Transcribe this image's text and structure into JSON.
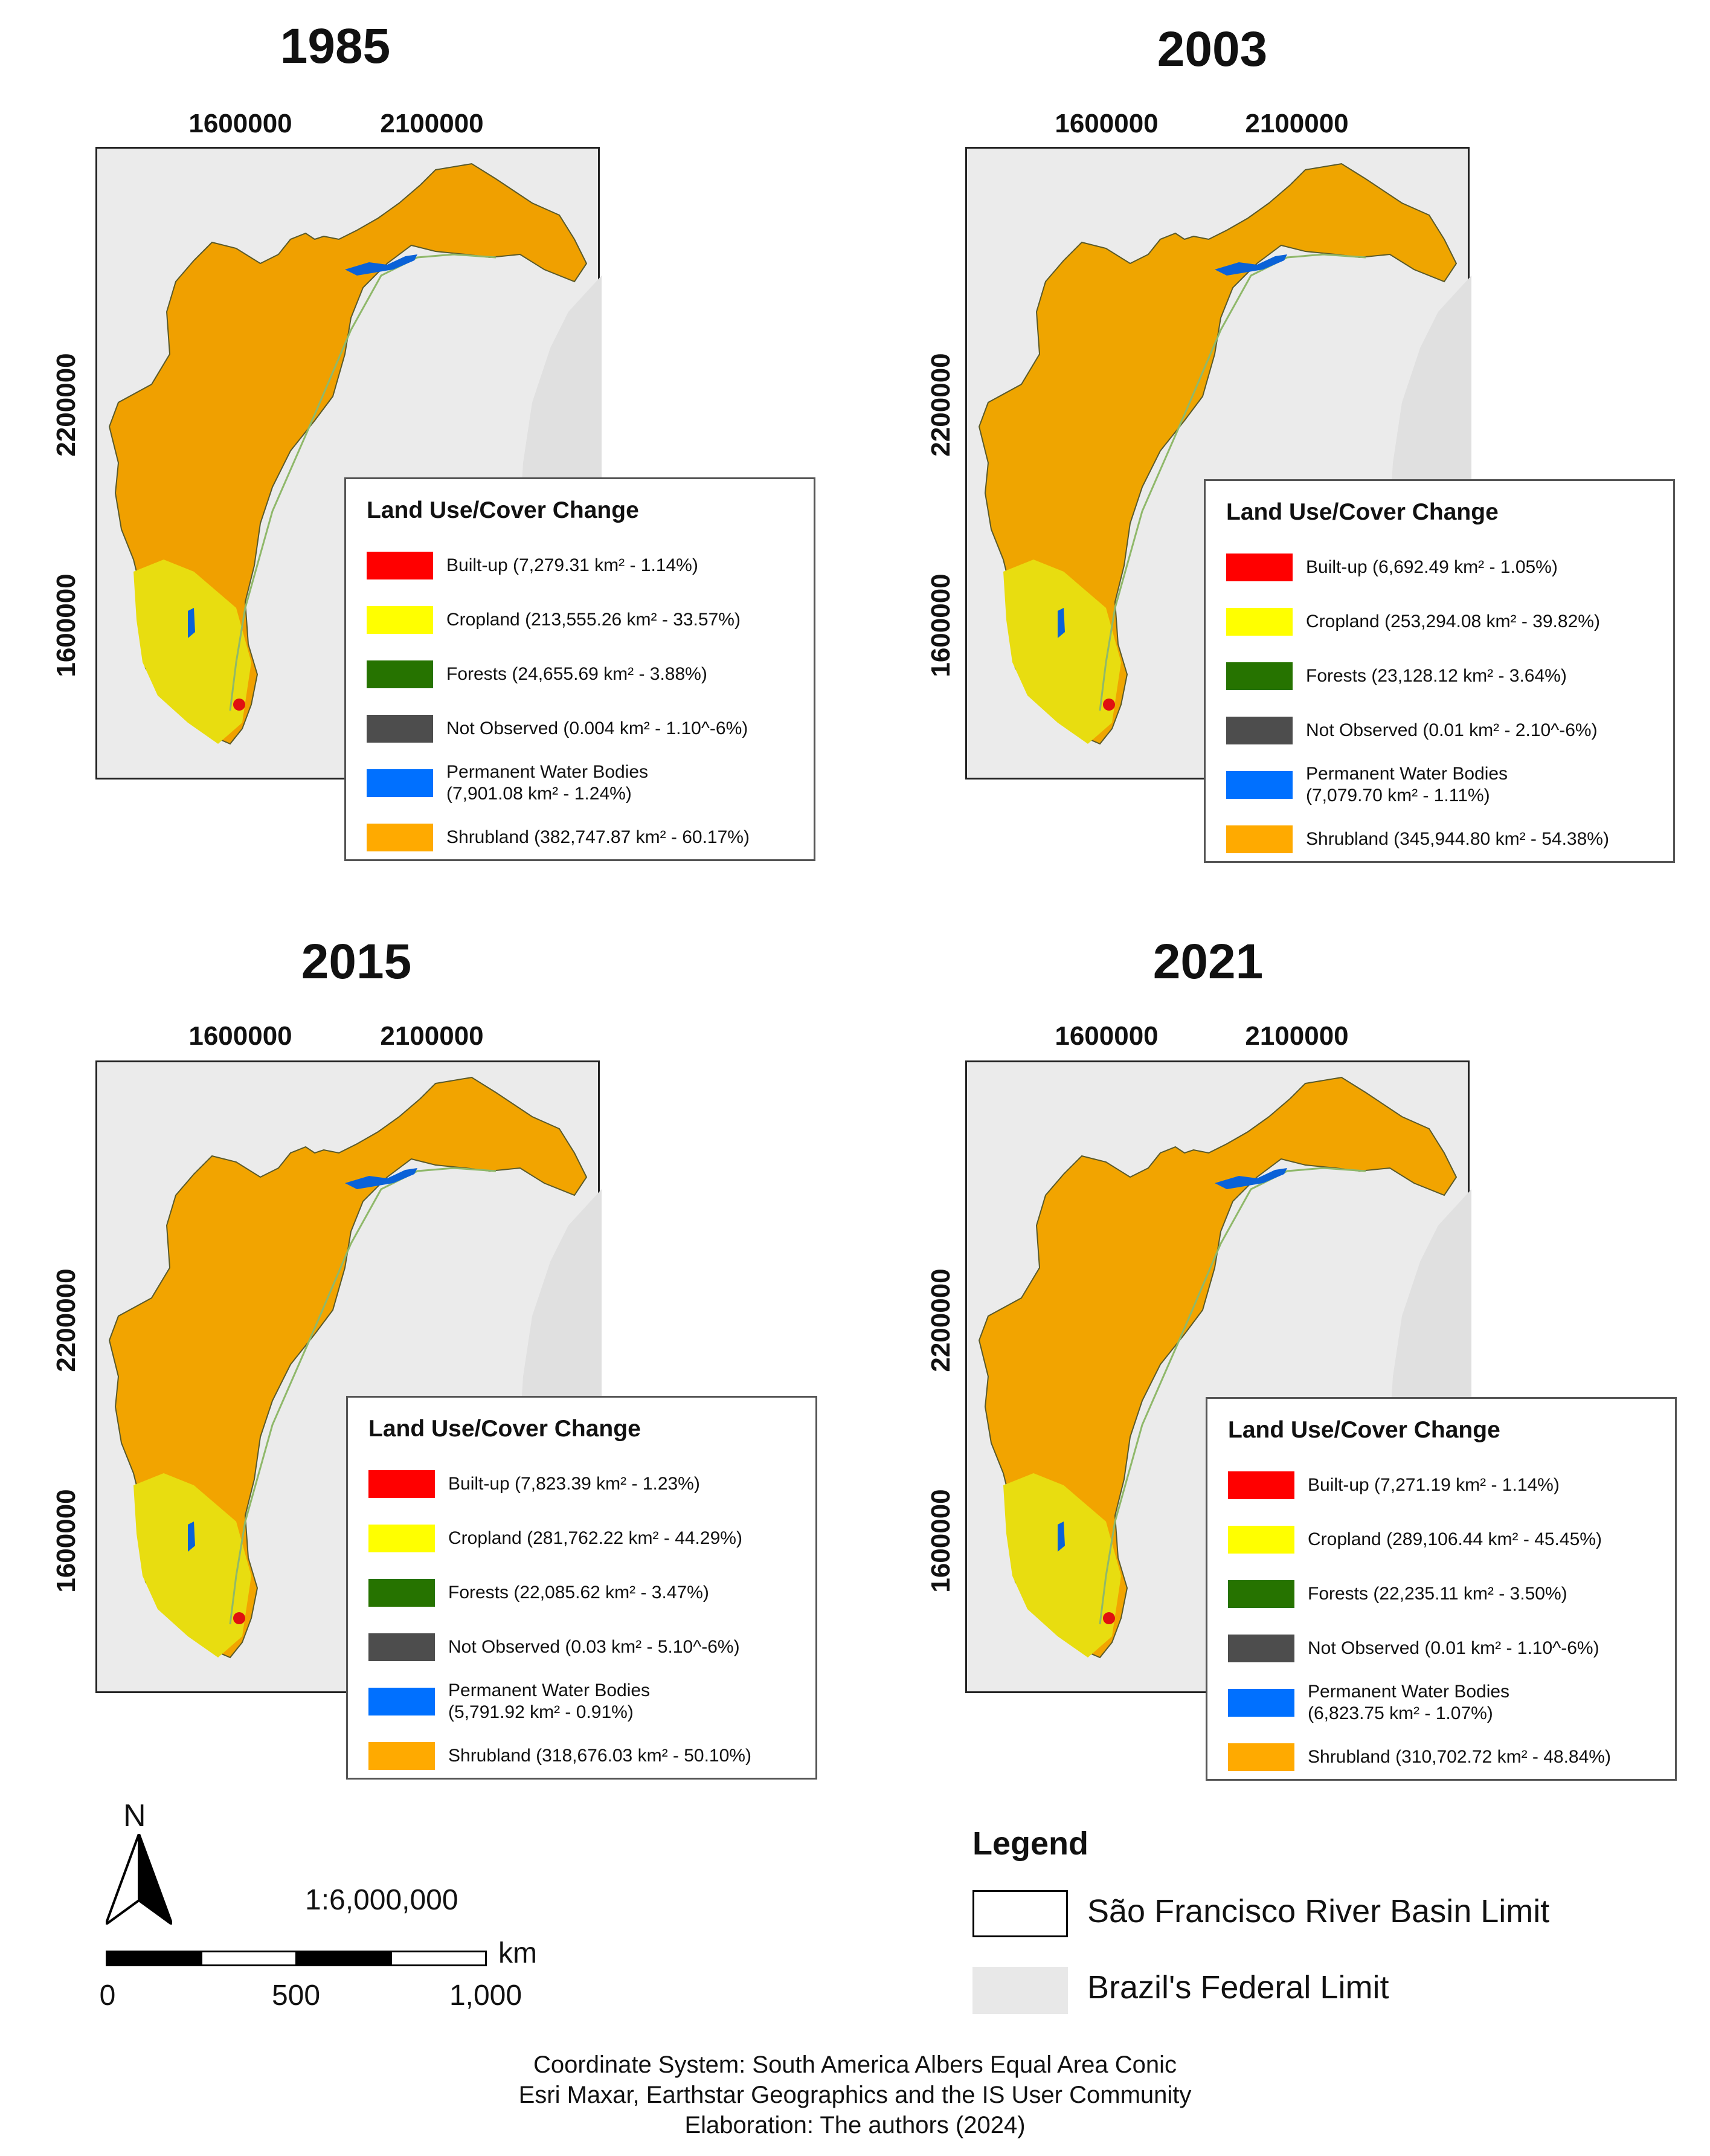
{
  "panels": [
    {
      "year": "1985",
      "x_ticks": [
        "1600000",
        "2100000"
      ],
      "y_ticks": [
        "2200000",
        "1600000"
      ],
      "legend": {
        "title": "Land Use/Cover Change",
        "items": [
          {
            "label": "Built-up (7,279.31 km² - 1.14%)",
            "color": "#ff0000"
          },
          {
            "label": "Cropland (213,555.26 km² - 33.57%)",
            "color": "#ffff00"
          },
          {
            "label": "Forests (24,655.69 km² - 3.88%)",
            "color": "#267300"
          },
          {
            "label": "Not Observed (0.004 km² - 1.10^-6%)",
            "color": "#4d4d4d"
          },
          {
            "label": "Permanent Water Bodies\n(7,901.08 km² - 1.24%)",
            "color": "#0070ff"
          },
          {
            "label": "Shrubland (382,747.87 km² - 60.17%)",
            "color": "#ffaa00"
          }
        ]
      }
    },
    {
      "year": "2003",
      "x_ticks": [
        "1600000",
        "2100000"
      ],
      "y_ticks": [
        "2200000",
        "1600000"
      ],
      "legend": {
        "title": "Land Use/Cover Change",
        "items": [
          {
            "label": "Built-up (6,692.49 km² - 1.05%)",
            "color": "#ff0000"
          },
          {
            "label": "Cropland (253,294.08 km² - 39.82%)",
            "color": "#ffff00"
          },
          {
            "label": "Forests (23,128.12 km² - 3.64%)",
            "color": "#267300"
          },
          {
            "label": "Not Observed (0.01 km² - 2.10^-6%)",
            "color": "#4d4d4d"
          },
          {
            "label": "Permanent Water Bodies\n(7,079.70 km² - 1.11%)",
            "color": "#0070ff"
          },
          {
            "label": "Shrubland (345,944.80 km² - 54.38%)",
            "color": "#ffaa00"
          }
        ]
      }
    },
    {
      "year": "2015",
      "x_ticks": [
        "1600000",
        "2100000"
      ],
      "y_ticks": [
        "2200000",
        "1600000"
      ],
      "legend": {
        "title": "Land Use/Cover Change",
        "items": [
          {
            "label": "Built-up (7,823.39 km² - 1.23%)",
            "color": "#ff0000"
          },
          {
            "label": "Cropland (281,762.22 km² - 44.29%)",
            "color": "#ffff00"
          },
          {
            "label": "Forests (22,085.62 km² - 3.47%)",
            "color": "#267300"
          },
          {
            "label": "Not Observed (0.03 km² - 5.10^-6%)",
            "color": "#4d4d4d"
          },
          {
            "label": "Permanent Water Bodies\n(5,791.92 km² - 0.91%)",
            "color": "#0070ff"
          },
          {
            "label": "Shrubland (318,676.03 km² - 50.10%)",
            "color": "#ffaa00"
          }
        ]
      }
    },
    {
      "year": "2021",
      "x_ticks": [
        "1600000",
        "2100000"
      ],
      "y_ticks": [
        "2200000",
        "1600000"
      ],
      "legend": {
        "title": "Land Use/Cover Change",
        "items": [
          {
            "label": "Built-up (7,271.19 km² - 1.14%)",
            "color": "#ff0000"
          },
          {
            "label": "Cropland (289,106.44 km² - 45.45%)",
            "color": "#ffff00"
          },
          {
            "label": "Forests (22,235.11 km² - 3.50%)",
            "color": "#267300"
          },
          {
            "label": "Not Observed (0.01 km² - 1.10^-6%)",
            "color": "#4d4d4d"
          },
          {
            "label": "Permanent Water Bodies\n(6,823.75 km² - 1.07%)",
            "color": "#0070ff"
          },
          {
            "label": "Shrubland (310,702.72 km² - 48.84%)",
            "color": "#ffaa00"
          }
        ]
      }
    }
  ],
  "north_arrow": {
    "letter": "N",
    "icon": "north-arrow-icon"
  },
  "scale": {
    "ratio": "1:6,000,000",
    "unit": "km",
    "ticks": [
      "0",
      "500",
      "1,000"
    ]
  },
  "main_legend": {
    "title": "Legend",
    "items": [
      {
        "label": "São Francisco River Basin Limit",
        "color": "#ffffff"
      },
      {
        "label": "Brazil's Federal Limit",
        "color": "#e8e8e8"
      }
    ]
  },
  "footer": [
    "Coordinate System: South America Albers Equal Area Conic",
    "Esri Maxar, Earthstar Geographics and the IS User Community",
    "Elaboration: The authors (2024)"
  ]
}
